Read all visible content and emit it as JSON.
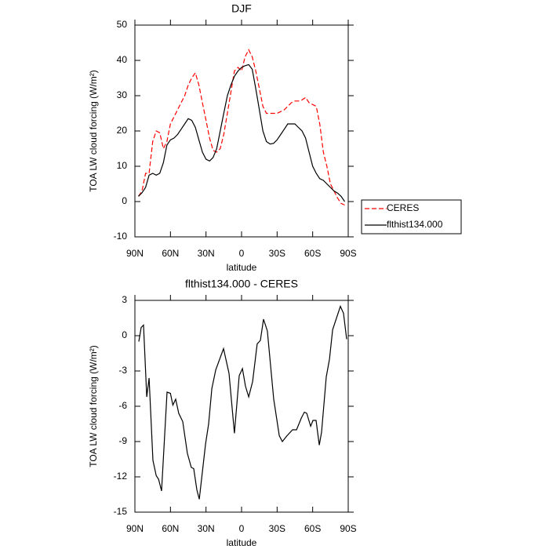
{
  "chart_data": [
    {
      "type": "line",
      "title": "DJF",
      "xlabel": "latitude",
      "ylabel": "TOA LW cloud forcing (W/m²)",
      "x": [
        87,
        84,
        81,
        78,
        75,
        72,
        69,
        66,
        63,
        60,
        57,
        54,
        51,
        48,
        45,
        42,
        39,
        36,
        33,
        30,
        27,
        24,
        21,
        18,
        15,
        12,
        9,
        6,
        3,
        0,
        -3,
        -6,
        -9,
        -12,
        -15,
        -18,
        -21,
        -24,
        -27,
        -30,
        -33,
        -36,
        -39,
        -42,
        -45,
        -48,
        -51,
        -54,
        -57,
        -60,
        -63,
        -66,
        -69,
        -72,
        -75,
        -78,
        -81,
        -84,
        -87
      ],
      "series": [
        {
          "name": "CERES",
          "color": "#ff0000",
          "line_style": "dashed",
          "values": [
            1.5,
            3,
            8,
            8,
            17,
            20,
            19.5,
            15,
            17,
            22,
            24,
            26,
            28,
            30,
            33,
            35,
            36.5,
            33,
            28,
            23,
            18,
            14.5,
            14,
            15,
            19,
            25,
            31,
            37,
            38,
            37,
            41,
            43,
            41,
            37,
            32,
            27,
            25,
            25,
            25,
            25,
            25.5,
            26,
            27,
            28,
            28.5,
            28.5,
            28.8,
            29.5,
            28,
            27.5,
            27,
            22,
            14,
            10,
            5,
            3,
            1,
            -0.5,
            -1
          ]
        },
        {
          "name": "flthist134.000",
          "color": "#000000",
          "line_style": "solid",
          "values": [
            1.5,
            2.5,
            4,
            7.5,
            8,
            7.5,
            8,
            11,
            16,
            17.5,
            18,
            19,
            20.5,
            22,
            23.5,
            23,
            21,
            17.5,
            14,
            12,
            11.5,
            12.5,
            15,
            20,
            25,
            30,
            33,
            35.5,
            37,
            38,
            38.5,
            38.8,
            37.5,
            32,
            26,
            20,
            17,
            16.3,
            16.5,
            17.5,
            19,
            20.5,
            22,
            22,
            22,
            21,
            20,
            18,
            14,
            10,
            8,
            6.5,
            6,
            5,
            4,
            3,
            2.4,
            1.5,
            0
          ]
        }
      ],
      "xlim": [
        90,
        -90
      ],
      "xticks": [
        {
          "value": 90,
          "label": "90N"
        },
        {
          "value": 60,
          "label": "60N"
        },
        {
          "value": 30,
          "label": "30N"
        },
        0,
        {
          "value": -30,
          "label": "30S"
        },
        {
          "value": -60,
          "label": "60S"
        },
        {
          "value": -90,
          "label": "90S"
        }
      ],
      "ylim": [
        -10,
        50
      ],
      "yticks": [
        -10,
        0,
        10,
        20,
        30,
        40,
        50
      ],
      "legend": "right"
    },
    {
      "type": "line",
      "title": "flthist134.000 - CERES",
      "xlabel": "latitude",
      "ylabel": "TOA LW cloud forcing (W/m²)",
      "x": [
        86.7,
        84.7,
        82.7,
        80,
        78,
        74.8,
        72,
        70,
        67.5,
        62.9,
        60,
        58,
        55.6,
        53,
        49.6,
        45.7,
        42.4,
        40.4,
        37.7,
        35.7,
        30.4,
        27.8,
        25.1,
        21.8,
        15.2,
        10.6,
        6,
        2,
        -0.7,
        -3.3,
        -6,
        -9.3,
        -13.2,
        -15.9,
        -18.5,
        -21.8,
        -27.1,
        -31.8,
        -34.4,
        -38.4,
        -43,
        -46.4,
        -50.4,
        -53,
        -55,
        -58.3,
        -60.3,
        -62.9,
        -65.6,
        -67.5,
        -71.5,
        -74.2,
        -76.8,
        -83.4,
        -86,
        -88.7
      ],
      "values": [
        -0.5,
        0.7,
        0.9,
        -5.2,
        -3.6,
        -10.6,
        -11.9,
        -12.2,
        -13.2,
        -4.8,
        -4.9,
        -5.9,
        -5.4,
        -6.6,
        -7.3,
        -10,
        -11.2,
        -11.3,
        -13.1,
        -13.9,
        -9.2,
        -7.5,
        -4.5,
        -2.9,
        -1.1,
        -3.2,
        -8.3,
        -3.4,
        -2.8,
        -4.3,
        -5.2,
        -3.9,
        -0.7,
        -0.4,
        1.4,
        0.4,
        -5.4,
        -8.5,
        -9,
        -8.5,
        -8,
        -8,
        -7,
        -6.5,
        -6.6,
        -7.7,
        -7.2,
        -7.2,
        -9.3,
        -8.2,
        -3.5,
        -2,
        0.5,
        2.5,
        1.9,
        -0.3
      ],
      "color": "#000000",
      "xlim": [
        90,
        -90
      ],
      "xticks": [
        {
          "value": 90,
          "label": "90N"
        },
        {
          "value": 60,
          "label": "60N"
        },
        {
          "value": 30,
          "label": "30N"
        },
        0,
        {
          "value": -30,
          "label": "30S"
        },
        {
          "value": -60,
          "label": "60S"
        },
        {
          "value": -90,
          "label": "90S"
        }
      ],
      "ylim": [
        -15,
        3
      ],
      "yticks": [
        -15,
        -12,
        -9,
        -6,
        -3,
        0,
        3
      ]
    }
  ]
}
